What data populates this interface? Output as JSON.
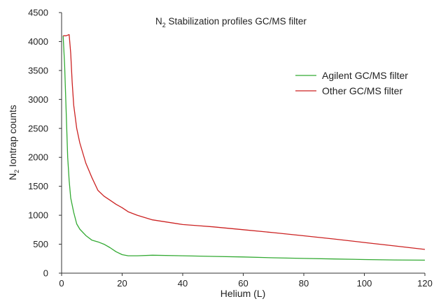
{
  "chart_data": {
    "type": "line",
    "title": {
      "pre": "N",
      "sub": "2",
      "post": " Stabilization profiles GC/MS filter"
    },
    "xlabel": "Helium (L)",
    "ylabel": {
      "pre": "N",
      "sub": "2",
      "post": " Iontrap counts"
    },
    "xlim": [
      0,
      120
    ],
    "ylim": [
      0,
      4500
    ],
    "xticks": [
      0,
      20,
      40,
      60,
      80,
      100,
      120
    ],
    "yticks": [
      0,
      500,
      1000,
      1500,
      2000,
      2500,
      3000,
      3500,
      4000,
      4500
    ],
    "grid": false,
    "legend_position": "right",
    "series": [
      {
        "name": "Agilent GC/MS filter",
        "color": "#33aa33",
        "x": [
          0.5,
          1,
          1.5,
          2,
          2.5,
          3,
          4,
          5,
          6,
          8,
          10,
          12,
          14,
          16,
          18,
          20,
          22,
          25,
          30,
          40,
          50,
          60,
          70,
          80,
          90,
          100,
          110,
          120
        ],
        "y": [
          4100,
          3600,
          2800,
          2000,
          1600,
          1300,
          1050,
          850,
          760,
          650,
          570,
          540,
          500,
          440,
          370,
          320,
          300,
          300,
          310,
          300,
          290,
          280,
          265,
          255,
          245,
          235,
          228,
          225
        ]
      },
      {
        "name": "Other GC/MS filter",
        "color": "#cc2222",
        "x": [
          0.5,
          1.5,
          2.5,
          3,
          3.5,
          4,
          5,
          6,
          8,
          10,
          12,
          14,
          16,
          18,
          20,
          22,
          25,
          30,
          40,
          45,
          50,
          60,
          70,
          80,
          90,
          100,
          110,
          120
        ],
        "y": [
          4100,
          4100,
          4120,
          3800,
          3300,
          2900,
          2500,
          2250,
          1900,
          1650,
          1430,
          1330,
          1260,
          1190,
          1130,
          1060,
          1000,
          920,
          840,
          820,
          800,
          750,
          700,
          645,
          590,
          530,
          470,
          410
        ]
      }
    ]
  }
}
